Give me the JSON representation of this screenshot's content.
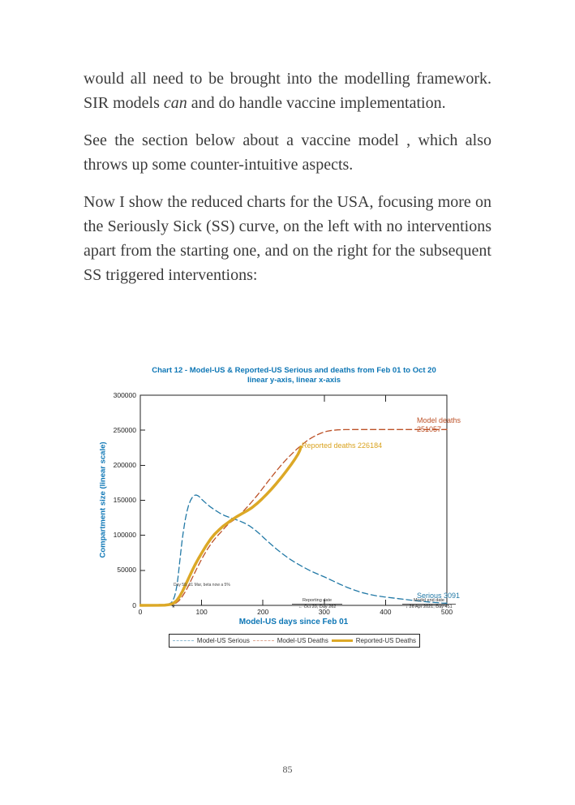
{
  "page": {
    "number": "85"
  },
  "paragraphs": {
    "p1_before": "would all need to be brought into the modelling framework. SIR models ",
    "p1_italic": "can",
    "p1_after": " and do handle vaccine implementation.",
    "p2": "See the section below about a vaccine model , which also throws up some counter-intuitive aspects.",
    "p3": "Now I show the reduced charts for the USA, focusing more on the Seriously Sick (SS) curve, on the left with no interventions apart from the starting one, and on the right for the subsequent SS triggered interventions:"
  },
  "colors": {
    "title_blue": "#0d76b5",
    "serious_blue": "#2279a6",
    "deaths_orange": "#bc5127",
    "reported_gold": "#dca826",
    "axis_black": "#222222"
  },
  "chart_data": {
    "type": "line",
    "title": "Chart 12 - Model-US & Reported-US Serious and deaths from Feb 01 to Oct 20",
    "subtitle": "linear y-axis, linear x-axis",
    "xlabel": "Model-US days since Feb 01",
    "ylabel": "Compartment size (linear scale)",
    "xlim": [
      0,
      500
    ],
    "ylim": [
      0,
      300000
    ],
    "xticks": [
      0,
      100,
      200,
      300,
      400,
      500
    ],
    "yticks": [
      0,
      50000,
      100000,
      150000,
      200000,
      250000,
      300000
    ],
    "top_axis_ticks": [
      300,
      400
    ],
    "grid": false,
    "legend_position": "below",
    "series": [
      {
        "name": "Model-US Serious",
        "color": "#2279a6",
        "style": "dashed",
        "width": 1.3,
        "points": [
          [
            0,
            0
          ],
          [
            20,
            100
          ],
          [
            35,
            400
          ],
          [
            42,
            1000
          ],
          [
            46,
            1800
          ],
          [
            50,
            3500
          ],
          [
            53,
            6500
          ],
          [
            56,
            13000
          ],
          [
            58,
            20000
          ],
          [
            60,
            30000
          ],
          [
            62,
            44000
          ],
          [
            64,
            60000
          ],
          [
            66,
            76000
          ],
          [
            68,
            91000
          ],
          [
            70,
            104000
          ],
          [
            73,
            121000
          ],
          [
            76,
            134000
          ],
          [
            79,
            143500
          ],
          [
            82,
            150000
          ],
          [
            85,
            154500
          ],
          [
            88,
            157000
          ],
          [
            91,
            157500
          ],
          [
            94,
            156500
          ],
          [
            97,
            154500
          ],
          [
            100,
            151500
          ],
          [
            105,
            147500
          ],
          [
            110,
            143500
          ],
          [
            116,
            139500
          ],
          [
            122,
            136000
          ],
          [
            130,
            131500
          ],
          [
            138,
            128000
          ],
          [
            146,
            125500
          ],
          [
            154,
            123000
          ],
          [
            162,
            120500
          ],
          [
            170,
            117500
          ],
          [
            178,
            113500
          ],
          [
            186,
            108500
          ],
          [
            194,
            102500
          ],
          [
            202,
            96000
          ],
          [
            212,
            88000
          ],
          [
            222,
            80500
          ],
          [
            232,
            73500
          ],
          [
            243,
            66500
          ],
          [
            254,
            60500
          ],
          [
            266,
            54500
          ],
          [
            278,
            49000
          ],
          [
            290,
            44500
          ],
          [
            302,
            40000
          ],
          [
            314,
            35000
          ],
          [
            326,
            30000
          ],
          [
            338,
            25500
          ],
          [
            350,
            21500
          ],
          [
            362,
            18200
          ],
          [
            374,
            15500
          ],
          [
            386,
            13500
          ],
          [
            398,
            12000
          ],
          [
            410,
            10800
          ],
          [
            422,
            9500
          ],
          [
            434,
            8200
          ],
          [
            446,
            7000
          ],
          [
            458,
            5900
          ],
          [
            470,
            4900
          ],
          [
            482,
            4000
          ],
          [
            492,
            3400
          ],
          [
            500,
            3091
          ]
        ]
      },
      {
        "name": "Model-US Deaths",
        "color": "#bc5127",
        "style": "dashed",
        "width": 1.3,
        "points": [
          [
            0,
            0
          ],
          [
            35,
            100
          ],
          [
            45,
            400
          ],
          [
            52,
            1200
          ],
          [
            58,
            3000
          ],
          [
            63,
            6500
          ],
          [
            68,
            12000
          ],
          [
            73,
            19000
          ],
          [
            78,
            27000
          ],
          [
            83,
            36000
          ],
          [
            88,
            45000
          ],
          [
            93,
            54000
          ],
          [
            98,
            62500
          ],
          [
            104,
            72000
          ],
          [
            110,
            81000
          ],
          [
            117,
            90000
          ],
          [
            124,
            97500
          ],
          [
            131,
            104000
          ],
          [
            138,
            111000
          ],
          [
            145,
            117500
          ],
          [
            152,
            121500
          ],
          [
            160,
            127500
          ],
          [
            168,
            134500
          ],
          [
            176,
            142000
          ],
          [
            184,
            150000
          ],
          [
            192,
            158500
          ],
          [
            200,
            167500
          ],
          [
            208,
            176500
          ],
          [
            216,
            185500
          ],
          [
            224,
            194000
          ],
          [
            232,
            202500
          ],
          [
            240,
            210000
          ],
          [
            248,
            217000
          ],
          [
            256,
            223500
          ],
          [
            264,
            229500
          ],
          [
            272,
            235000
          ],
          [
            280,
            239500
          ],
          [
            288,
            243300
          ],
          [
            296,
            246300
          ],
          [
            304,
            248400
          ],
          [
            312,
            249700
          ],
          [
            322,
            250500
          ],
          [
            334,
            250900
          ],
          [
            350,
            251020
          ],
          [
            375,
            251050
          ],
          [
            400,
            251057
          ],
          [
            451,
            251057
          ],
          [
            500,
            251057
          ]
        ]
      },
      {
        "name": "Reported-US Deaths",
        "color": "#dca826",
        "style": "solid",
        "width": 3.5,
        "points": [
          [
            0,
            0
          ],
          [
            30,
            100
          ],
          [
            40,
            400
          ],
          [
            48,
            1200
          ],
          [
            54,
            3000
          ],
          [
            59,
            6500
          ],
          [
            64,
            12500
          ],
          [
            69,
            20500
          ],
          [
            74,
            29500
          ],
          [
            79,
            39000
          ],
          [
            84,
            48500
          ],
          [
            89,
            57500
          ],
          [
            95,
            67000
          ],
          [
            101,
            76000
          ],
          [
            108,
            86000
          ],
          [
            115,
            95000
          ],
          [
            121,
            101500
          ],
          [
            128,
            107500
          ],
          [
            135,
            113000
          ],
          [
            142,
            117500
          ],
          [
            150,
            122500
          ],
          [
            158,
            127000
          ],
          [
            166,
            131000
          ],
          [
            174,
            135000
          ],
          [
            182,
            139500
          ],
          [
            190,
            145000
          ],
          [
            198,
            151500
          ],
          [
            206,
            158500
          ],
          [
            214,
            166000
          ],
          [
            222,
            174000
          ],
          [
            230,
            182500
          ],
          [
            238,
            191500
          ],
          [
            246,
            201000
          ],
          [
            252,
            208500
          ],
          [
            257,
            215500
          ],
          [
            260,
            221000
          ],
          [
            262,
            226184
          ]
        ]
      }
    ],
    "annotations": {
      "model_deaths_label": "Model deaths",
      "model_deaths_value": "251057",
      "reported_deaths": "Reported deaths 226184",
      "serious_end": "Serious 3091",
      "reporting_date_title": "Reporting date",
      "reporting_date_detail": "← Oct 20, Day 262",
      "model_end_title": "Model end date",
      "model_end_detail": "↓ 26 Apr 2021, Day 451",
      "intervention_note": "Day 59, 31 Mar, beta now a 5%",
      "intervention_marker": "*"
    }
  }
}
